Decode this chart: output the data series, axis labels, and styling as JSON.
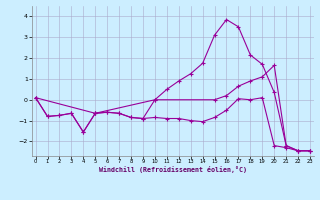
{
  "xlabel": "Windchill (Refroidissement éolien,°C)",
  "background_color": "#cceeff",
  "grid_color": "#aaaacc",
  "line_color": "#990099",
  "xlim_min": -0.3,
  "xlim_max": 23.3,
  "ylim_min": -2.7,
  "ylim_max": 4.5,
  "yticks": [
    -2,
    -1,
    0,
    1,
    2,
    3,
    4
  ],
  "xticks": [
    0,
    1,
    2,
    3,
    4,
    5,
    6,
    7,
    8,
    9,
    10,
    11,
    12,
    13,
    14,
    15,
    16,
    17,
    18,
    19,
    20,
    21,
    22,
    23
  ],
  "line1_x": [
    0,
    1,
    2,
    3,
    4,
    5,
    6,
    7,
    8,
    9,
    10,
    11,
    12,
    13,
    14,
    15,
    16,
    17,
    18,
    19,
    20,
    21,
    22,
    23
  ],
  "line1_y": [
    0.1,
    -0.8,
    -0.75,
    -0.65,
    -1.55,
    -0.65,
    -0.6,
    -0.65,
    -0.85,
    -0.9,
    -0.85,
    -0.9,
    -0.9,
    -1.0,
    -1.05,
    -0.85,
    -0.5,
    0.05,
    0.0,
    0.1,
    -2.2,
    -2.3,
    -2.45,
    -2.45
  ],
  "line2_x": [
    0,
    1,
    2,
    3,
    4,
    5,
    6,
    7,
    8,
    9,
    10,
    11,
    12,
    13,
    14,
    15,
    16,
    17,
    18,
    19,
    20,
    21,
    22,
    23
  ],
  "line2_y": [
    0.1,
    -0.8,
    -0.75,
    -0.65,
    -1.55,
    -0.65,
    -0.6,
    -0.65,
    -0.85,
    -0.9,
    0.0,
    0.5,
    0.9,
    1.25,
    1.75,
    3.1,
    3.85,
    3.5,
    2.15,
    1.7,
    0.35,
    -2.2,
    -2.45,
    -2.45
  ],
  "line3_x": [
    0,
    5,
    10,
    15,
    16,
    17,
    18,
    19,
    20,
    21,
    22,
    23
  ],
  "line3_y": [
    0.1,
    -0.65,
    0.0,
    0.0,
    0.2,
    0.65,
    0.9,
    1.1,
    1.65,
    -2.2,
    -2.45,
    -2.45
  ]
}
